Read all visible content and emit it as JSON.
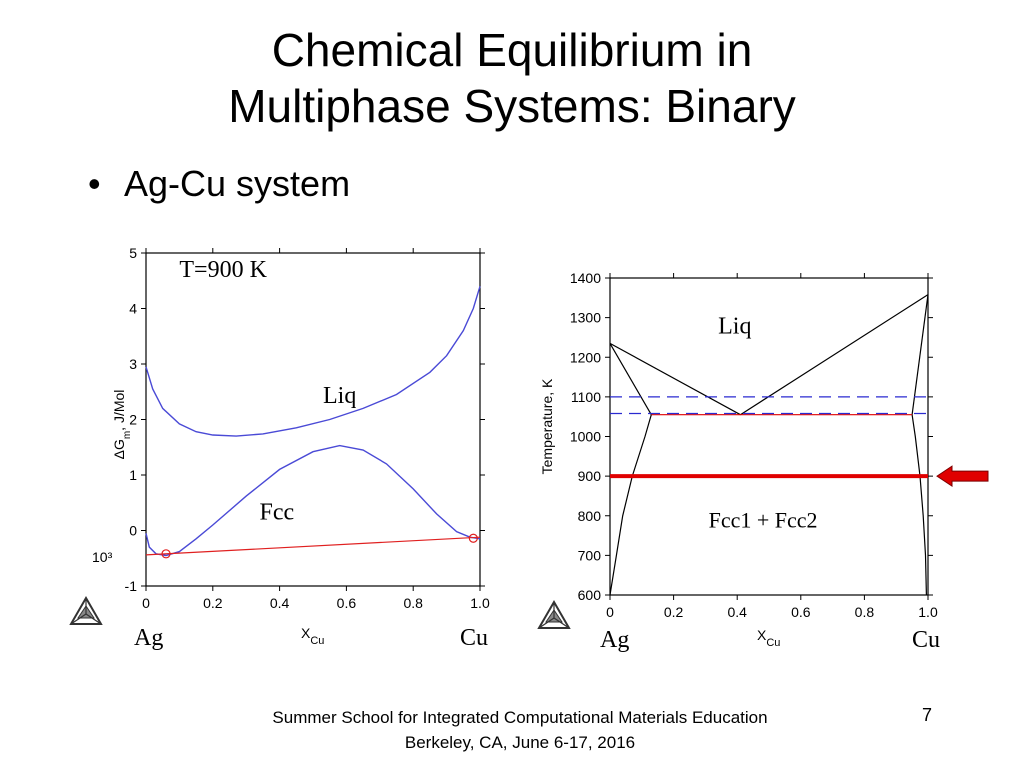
{
  "slide": {
    "title_line1": "Chemical Equilibrium in",
    "title_line2": "Multiphase Systems: Binary",
    "bullet": "Ag-Cu system",
    "footer_line1": "Summer School for Integrated Computational Materials Education",
    "footer_line2": "Berkeley, CA, June 6-17, 2016",
    "page_number": "7"
  },
  "colors": {
    "liq_curve": "#4a4ad6",
    "fcc_curve": "#4a4ad6",
    "tangent": "#e02020",
    "isotherm": "#e00000",
    "arrow": "#e00000",
    "phase_boundary": "#000000",
    "dashed": "#2a2ad0"
  },
  "chart_data": [
    {
      "type": "line",
      "name": "gibbs-energy",
      "annotation": "T=900 K",
      "ylabel": "ΔG",
      "ylabel_sub": "m",
      "ylabel_unit": ", J/Mol",
      "yscale_label": "10³",
      "xlabel": "X",
      "xlabel_sub": "Cu",
      "endpoint_left": "Ag",
      "endpoint_right": "Cu",
      "xlim": [
        0,
        1
      ],
      "ylim": [
        -1,
        5
      ],
      "x_ticks": [
        "0",
        "0.2",
        "0.4",
        "0.6",
        "0.8",
        "1.0"
      ],
      "y_ticks": [
        "-1",
        "0",
        "1",
        "2",
        "3",
        "4",
        "5"
      ],
      "series": [
        {
          "name": "Liq",
          "x": [
            0.0,
            0.02,
            0.05,
            0.1,
            0.15,
            0.2,
            0.27,
            0.35,
            0.45,
            0.55,
            0.65,
            0.75,
            0.85,
            0.9,
            0.95,
            0.98,
            1.0
          ],
          "y": [
            2.95,
            2.55,
            2.2,
            1.92,
            1.78,
            1.72,
            1.7,
            1.74,
            1.85,
            2.0,
            2.2,
            2.45,
            2.85,
            3.15,
            3.6,
            4.0,
            4.4
          ]
        },
        {
          "name": "Fcc",
          "x": [
            0.0,
            0.01,
            0.03,
            0.06,
            0.1,
            0.15,
            0.2,
            0.3,
            0.4,
            0.5,
            0.58,
            0.65,
            0.72,
            0.8,
            0.87,
            0.93,
            0.97,
            1.0
          ],
          "y": [
            -0.05,
            -0.3,
            -0.42,
            -0.45,
            -0.38,
            -0.15,
            0.1,
            0.62,
            1.1,
            1.42,
            1.53,
            1.45,
            1.2,
            0.75,
            0.3,
            -0.02,
            -0.12,
            -0.15
          ]
        },
        {
          "name": "common-tangent",
          "x": [
            0.0,
            1.0
          ],
          "y": [
            -0.44,
            -0.12
          ]
        }
      ],
      "tangent_points": [
        {
          "x": 0.06,
          "y": -0.42
        },
        {
          "x": 0.98,
          "y": -0.14
        }
      ]
    },
    {
      "type": "line",
      "name": "phase-diagram",
      "region_labels": [
        "Liq",
        "Fcc1 + Fcc2"
      ],
      "ylabel": "Temperature, K",
      "xlabel": "X",
      "xlabel_sub": "Cu",
      "endpoint_left": "Ag",
      "endpoint_right": "Cu",
      "xlim": [
        0,
        1
      ],
      "ylim": [
        600,
        1400
      ],
      "x_ticks": [
        "0",
        "0.2",
        "0.4",
        "0.6",
        "0.8",
        "1.0"
      ],
      "y_ticks": [
        "600",
        "700",
        "800",
        "900",
        "1000",
        "1100",
        "1200",
        "1300",
        "1400"
      ],
      "series": [
        {
          "name": "liquidus-left",
          "x": [
            0.0,
            0.41
          ],
          "y": [
            1235,
            1055
          ]
        },
        {
          "name": "liquidus-right",
          "x": [
            0.41,
            1.0
          ],
          "y": [
            1055,
            1358
          ]
        },
        {
          "name": "solidus-left",
          "x": [
            0.0,
            0.13
          ],
          "y": [
            1235,
            1055
          ]
        },
        {
          "name": "solidus-right",
          "x": [
            0.95,
            1.0
          ],
          "y": [
            1055,
            1358
          ]
        },
        {
          "name": "solvus-left",
          "x": [
            0.13,
            0.11,
            0.07,
            0.04,
            0.02,
            0.0
          ],
          "y": [
            1055,
            1000,
            900,
            800,
            700,
            600
          ]
        },
        {
          "name": "solvus-right",
          "x": [
            0.95,
            0.96,
            0.975,
            0.985,
            0.992,
            0.995
          ],
          "y": [
            1055,
            1000,
            900,
            800,
            700,
            600
          ]
        },
        {
          "name": "eutectic",
          "x": [
            0.13,
            0.95
          ],
          "y": [
            1055,
            1055
          ]
        },
        {
          "name": "isotherm-900K",
          "x": [
            0.0,
            1.0
          ],
          "y": [
            900,
            900
          ]
        },
        {
          "name": "dashed-1100",
          "x": [
            0.0,
            1.0
          ],
          "y": [
            1100,
            1100
          ]
        },
        {
          "name": "dashed-1058",
          "x": [
            0.0,
            1.0
          ],
          "y": [
            1058,
            1058
          ]
        }
      ]
    }
  ]
}
